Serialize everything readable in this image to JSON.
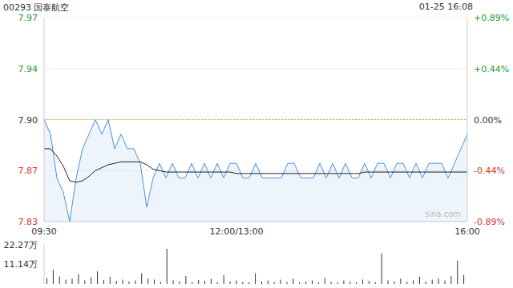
{
  "chart_data": [
    {
      "type": "line",
      "title": "00293 国泰航空",
      "subtitle": "01-25 16:08",
      "annotation": "sina.com",
      "categories": [
        "09:30",
        null,
        null,
        null,
        null,
        null,
        null,
        null,
        null,
        null,
        null,
        null,
        null,
        null,
        null,
        null,
        null,
        null,
        null,
        null,
        null,
        null,
        null,
        null,
        null,
        null,
        null,
        null,
        null,
        null,
        "12:00/13:00",
        null,
        null,
        null,
        null,
        null,
        null,
        null,
        null,
        null,
        null,
        null,
        null,
        null,
        null,
        null,
        null,
        null,
        null,
        null,
        null,
        null,
        null,
        null,
        null,
        null,
        null,
        null,
        null,
        null,
        null,
        null,
        null,
        null,
        null,
        null,
        "16:00"
      ],
      "series": [
        {
          "type": "area",
          "color": "#4a90e2",
          "values": [
            7.9,
            7.89,
            7.86,
            7.85,
            7.83,
            7.86,
            7.88,
            7.89,
            7.9,
            7.89,
            7.9,
            7.88,
            7.89,
            7.88,
            7.88,
            7.87,
            7.84,
            7.86,
            7.87,
            7.86,
            7.87,
            7.86,
            7.86,
            7.87,
            7.86,
            7.87,
            7.86,
            7.87,
            7.86,
            7.87,
            7.87,
            7.86,
            7.86,
            7.87,
            7.86,
            7.86,
            7.86,
            7.86,
            7.87,
            7.87,
            7.86,
            7.86,
            7.86,
            7.87,
            7.86,
            7.87,
            7.86,
            7.87,
            7.86,
            7.86,
            7.87,
            7.86,
            7.87,
            7.87,
            7.86,
            7.87,
            7.87,
            7.86,
            7.87,
            7.86,
            7.87,
            7.87,
            7.87,
            7.86,
            7.87,
            7.88,
            7.89
          ]
        },
        {
          "type": "line",
          "color": "#222222",
          "values": [
            7.88,
            7.88,
            7.875,
            7.868,
            7.858,
            7.857,
            7.858,
            7.861,
            7.865,
            7.867,
            7.869,
            7.87,
            7.871,
            7.871,
            7.871,
            7.871,
            7.869,
            7.866,
            7.865,
            7.864,
            7.864,
            7.864,
            7.864,
            7.864,
            7.864,
            7.864,
            7.864,
            7.864,
            7.864,
            7.864,
            7.863,
            7.863,
            7.863,
            7.863,
            7.863,
            7.863,
            7.863,
            7.863,
            7.863,
            7.863,
            7.863,
            7.863,
            7.863,
            7.863,
            7.863,
            7.863,
            7.863,
            7.863,
            7.863,
            7.863,
            7.864,
            7.864,
            7.864,
            7.864,
            7.864,
            7.864,
            7.864,
            7.864,
            7.864,
            7.864,
            7.864,
            7.864,
            7.864,
            7.864,
            7.864,
            7.864,
            7.864
          ]
        }
      ],
      "ylim": [
        7.83,
        7.97
      ],
      "yticks": [
        7.83,
        {
          "value": 7.865,
          "label": "7.87"
        },
        {
          "value": 7.9,
          "label": "7.90"
        },
        {
          "value": 7.935,
          "label": "7.94"
        },
        7.97
      ],
      "y2lim": [
        -0.89,
        0.89
      ],
      "y2ticks": [
        {
          "value": -0.89,
          "label": "-0.89%"
        },
        {
          "value": -0.44,
          "label": "-0.44%"
        },
        {
          "value": 0,
          "label": "0.00%"
        },
        {
          "value": 0.44,
          "label": "+0.44%"
        },
        {
          "value": 0.89,
          "label": "+0.89%"
        }
      ],
      "grid": true
    },
    {
      "type": "bar",
      "color": "#333333",
      "tick_labels": "y",
      "values": [
        3.5,
        8.0,
        4.2,
        2.5,
        3.0,
        5.5,
        2.0,
        3.8,
        7.0,
        2.2,
        4.0,
        1.8,
        2.5,
        1.5,
        2.0,
        6.0,
        3.0,
        2.5,
        1.2,
        19.6,
        2.0,
        1.5,
        4.5,
        1.0,
        2.2,
        1.8,
        3.0,
        1.0,
        5.0,
        1.5,
        2.0,
        1.2,
        1.0,
        6.0,
        1.5,
        2.0,
        1.0,
        2.5,
        1.2,
        3.0,
        1.0,
        1.5,
        2.0,
        1.0,
        3.5,
        1.2,
        1.0,
        2.0,
        1.5,
        1.0,
        2.5,
        1.8,
        1.0,
        17.0,
        2.0,
        1.5,
        3.0,
        1.2,
        2.0,
        4.0,
        1.5,
        2.5,
        3.0,
        2.0,
        4.5,
        13.0,
        5.0
      ],
      "ylim": [
        0,
        22.27
      ],
      "yticks": [
        0,
        {
          "value": 11.14,
          "label": "11.14万"
        },
        {
          "value": 22.27,
          "label": "22.27万"
        }
      ]
    }
  ]
}
